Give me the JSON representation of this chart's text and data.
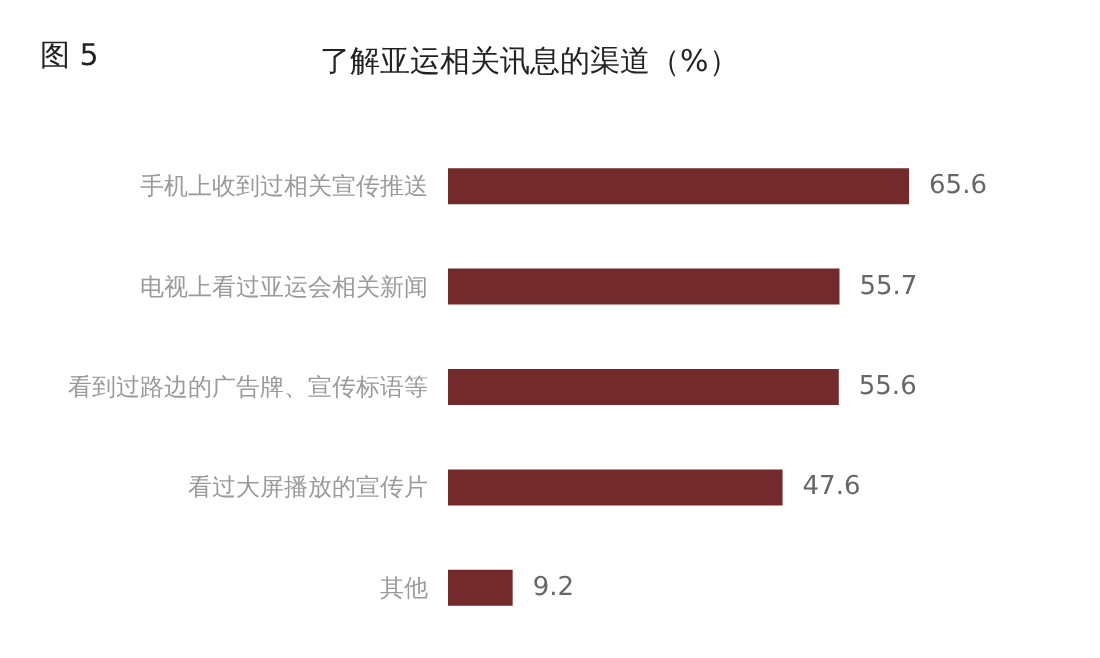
{
  "chart_data": {
    "type": "bar",
    "orientation": "horizontal",
    "title": "了解亚运相关讯息的渠道（%）",
    "annotations": [
      "图 5"
    ],
    "categories": [
      "手机上收到过相关宣传推送",
      "电视上看过亚运会相关新闻",
      "看到过路边的广告牌、宣传标语等",
      "看过大屏播放的宣传片",
      "其他"
    ],
    "values": [
      65.6,
      55.7,
      55.6,
      47.6,
      9.2
    ],
    "color": "#722a2a",
    "data_labels": true
  }
}
